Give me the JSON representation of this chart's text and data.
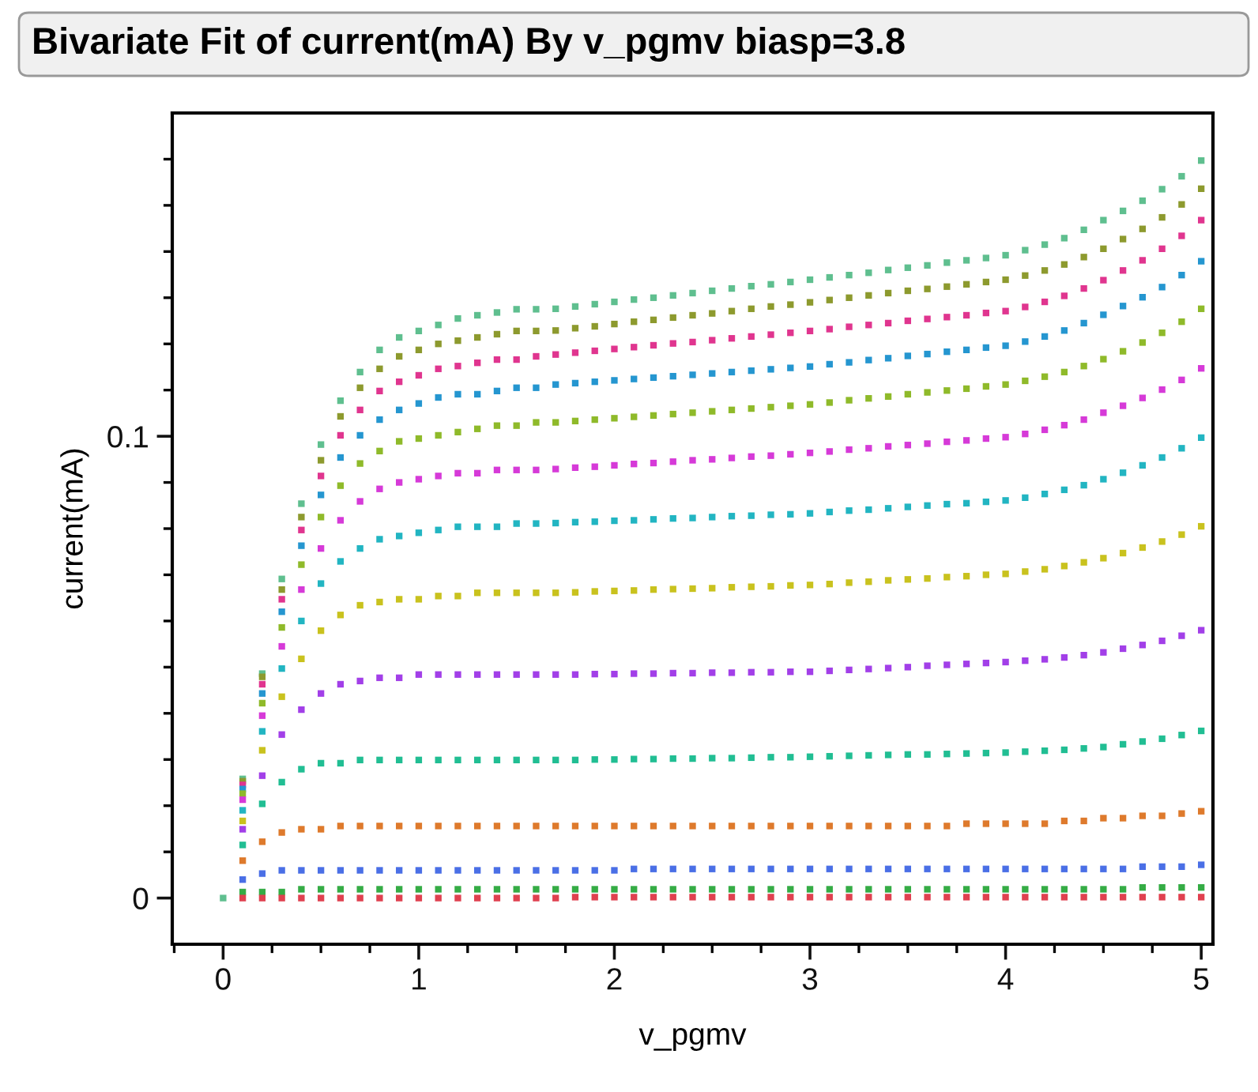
{
  "chart_data": {
    "type": "scatter",
    "title": "Bivariate Fit of current(mA) By v_pgmv biasp=3.8",
    "xlabel": "v_pgmv",
    "ylabel": "current(mA)",
    "x": [
      0,
      0.1,
      0.2,
      0.3,
      0.4,
      0.5,
      0.6,
      0.7,
      0.8,
      0.9,
      1.0,
      1.1,
      1.2,
      1.3,
      1.4,
      1.5,
      1.6,
      1.7,
      1.8,
      1.9,
      2.0,
      2.1,
      2.2,
      2.3,
      2.4,
      2.5,
      2.6,
      2.7,
      2.8,
      2.9,
      3.0,
      3.1,
      3.2,
      3.3,
      3.4,
      3.5,
      3.6,
      3.7,
      3.8,
      3.9,
      4.0,
      4.1,
      4.2,
      4.3,
      4.4,
      4.5,
      4.6,
      4.7,
      4.8,
      4.9,
      5.0
    ],
    "xlim": [
      -0.26,
      5.06
    ],
    "ylim": [
      -0.01,
      0.17
    ],
    "xticks": [
      0,
      1,
      2,
      3,
      4,
      5,
      {
        "value": -0.25,
        "label": null
      },
      {
        "value": 0.25,
        "label": null
      },
      {
        "value": 0.5,
        "label": null
      },
      {
        "value": 0.75,
        "label": null
      },
      {
        "value": 1.25,
        "label": null
      },
      {
        "value": 1.5,
        "label": null
      },
      {
        "value": 1.75,
        "label": null
      },
      {
        "value": 2.25,
        "label": null
      },
      {
        "value": 2.5,
        "label": null
      },
      {
        "value": 2.75,
        "label": null
      },
      {
        "value": 3.25,
        "label": null
      },
      {
        "value": 3.5,
        "label": null
      },
      {
        "value": 3.75,
        "label": null
      },
      {
        "value": 4.25,
        "label": null
      },
      {
        "value": 4.5,
        "label": null
      },
      {
        "value": 4.75,
        "label": null
      }
    ],
    "yticks": [
      0,
      0.1,
      {
        "value": 0.01,
        "label": null
      },
      {
        "value": 0.02,
        "label": null
      },
      {
        "value": 0.03,
        "label": null
      },
      {
        "value": 0.04,
        "label": null
      },
      {
        "value": 0.05,
        "label": null
      },
      {
        "value": 0.06,
        "label": null
      },
      {
        "value": 0.07,
        "label": null
      },
      {
        "value": 0.08,
        "label": null
      },
      {
        "value": 0.09,
        "label": null
      },
      {
        "value": 0.11,
        "label": null
      },
      {
        "value": 0.12,
        "label": null
      },
      {
        "value": 0.13,
        "label": null
      },
      {
        "value": 0.14,
        "label": null
      },
      {
        "value": 0.15,
        "label": null
      },
      {
        "value": 0.16,
        "label": null
      }
    ],
    "marker": "square",
    "grid": false,
    "legend": false,
    "series": [
      {
        "color": "#5fbf8f",
        "values": [
          0,
          0.0258,
          0.0486,
          0.0691,
          0.0854,
          0.0982,
          0.1077,
          0.1139,
          0.1187,
          0.1214,
          0.1228,
          0.1241,
          0.1255,
          0.1262,
          0.1268,
          0.1275,
          0.1275,
          0.1276,
          0.1281,
          0.1286,
          0.1291,
          0.1296,
          0.13,
          0.1305,
          0.131,
          0.1315,
          0.132,
          0.1325,
          0.1329,
          0.1334,
          0.1339,
          0.1344,
          0.1349,
          0.1354,
          0.136,
          0.1365,
          0.137,
          0.1376,
          0.1381,
          0.1386,
          0.1392,
          0.1403,
          0.1415,
          0.1429,
          0.1447,
          0.1468,
          0.1488,
          0.151,
          0.1535,
          0.1563,
          0.1597
        ]
      },
      {
        "color": "#8d9a2e",
        "values": [
          null,
          0.0253,
          0.0479,
          0.0668,
          0.0825,
          0.0948,
          0.1043,
          0.1105,
          0.1146,
          0.1173,
          0.1187,
          0.12,
          0.1207,
          0.1214,
          0.1221,
          0.1228,
          0.1228,
          0.1229,
          0.1234,
          0.1238,
          0.1243,
          0.1248,
          0.1252,
          0.1257,
          0.1262,
          0.1266,
          0.1271,
          0.1276,
          0.1281,
          0.1285,
          0.129,
          0.1295,
          0.13,
          0.1305,
          0.131,
          0.1315,
          0.1319,
          0.1324,
          0.1329,
          0.1334,
          0.1339,
          0.1348,
          0.1359,
          0.1372,
          0.1388,
          0.1406,
          0.1427,
          0.1449,
          0.1474,
          0.1502,
          0.1536
        ]
      },
      {
        "color": "#e0358f",
        "values": [
          null,
          0.0245,
          0.0463,
          0.0647,
          0.0797,
          0.0914,
          0.1002,
          0.1057,
          0.1098,
          0.1118,
          0.1132,
          0.1146,
          0.1152,
          0.1159,
          0.1166,
          0.1166,
          0.1173,
          0.1177,
          0.1181,
          0.1185,
          0.1189,
          0.1193,
          0.1197,
          0.1201,
          0.1204,
          0.1208,
          0.1212,
          0.1216,
          0.122,
          0.1224,
          0.1228,
          0.1232,
          0.1237,
          0.1241,
          0.1245,
          0.125,
          0.1254,
          0.1258,
          0.1262,
          0.1267,
          0.1271,
          0.128,
          0.1291,
          0.1304,
          0.132,
          0.1338,
          0.1359,
          0.1381,
          0.1406,
          0.1434,
          0.1468
        ]
      },
      {
        "color": "#2596d0",
        "values": [
          null,
          0.0236,
          0.0443,
          0.062,
          0.0763,
          0.0873,
          0.0954,
          0.1002,
          0.1036,
          0.1057,
          0.1071,
          0.1084,
          0.1091,
          0.1091,
          0.1098,
          0.1105,
          0.1105,
          0.1112,
          0.1115,
          0.1118,
          0.1121,
          0.1124,
          0.1127,
          0.113,
          0.1133,
          0.1136,
          0.1139,
          0.1142,
          0.1145,
          0.1148,
          0.1151,
          0.1156,
          0.116,
          0.1165,
          0.1169,
          0.1174,
          0.1178,
          0.1183,
          0.1187,
          0.1192,
          0.1196,
          0.1205,
          0.1216,
          0.1229,
          0.1245,
          0.1263,
          0.1282,
          0.1301,
          0.1323,
          0.1349,
          0.1379
        ]
      },
      {
        "color": "#8fba2a",
        "values": [
          null,
          0.0226,
          0.0422,
          0.0586,
          0.0722,
          0.0825,
          0.0893,
          0.0941,
          0.0968,
          0.0989,
          0.0995,
          0.1002,
          0.1009,
          0.1016,
          0.1023,
          0.1023,
          0.103,
          0.103,
          0.1033,
          0.1036,
          0.1039,
          0.1042,
          0.1045,
          0.1048,
          0.1051,
          0.1054,
          0.1057,
          0.106,
          0.1063,
          0.1066,
          0.1069,
          0.1073,
          0.1078,
          0.1082,
          0.1086,
          0.1091,
          0.1095,
          0.1099,
          0.1103,
          0.1108,
          0.1112,
          0.112,
          0.1129,
          0.1139,
          0.1152,
          0.1167,
          0.1184,
          0.1203,
          0.1224,
          0.1248,
          0.1276
        ]
      },
      {
        "color": "#d63ad8",
        "values": [
          null,
          0.0213,
          0.0395,
          0.0545,
          0.0668,
          0.0757,
          0.0818,
          0.0859,
          0.0886,
          0.09,
          0.0907,
          0.0914,
          0.092,
          0.092,
          0.0927,
          0.0927,
          0.0927,
          0.0929,
          0.0932,
          0.0934,
          0.0937,
          0.094,
          0.0942,
          0.0945,
          0.0948,
          0.095,
          0.0953,
          0.0956,
          0.0958,
          0.0961,
          0.0964,
          0.0967,
          0.0971,
          0.0974,
          0.0978,
          0.0981,
          0.0984,
          0.0988,
          0.0991,
          0.0995,
          0.0998,
          0.1005,
          0.1014,
          0.1024,
          0.1036,
          0.1051,
          0.1066,
          0.1083,
          0.1101,
          0.1122,
          0.1147
        ]
      },
      {
        "color": "#22b5c2",
        "values": [
          null,
          0.019,
          0.0361,
          0.0497,
          0.06,
          0.0681,
          0.0729,
          0.0757,
          0.0777,
          0.0784,
          0.0791,
          0.0797,
          0.0804,
          0.0804,
          0.0804,
          0.0811,
          0.0811,
          0.0812,
          0.0814,
          0.0815,
          0.0817,
          0.0818,
          0.082,
          0.0822,
          0.0823,
          0.0825,
          0.0827,
          0.0828,
          0.083,
          0.0831,
          0.0833,
          0.0836,
          0.0839,
          0.0841,
          0.0844,
          0.0847,
          0.085,
          0.0853,
          0.0855,
          0.0858,
          0.0861,
          0.0867,
          0.0875,
          0.0884,
          0.0894,
          0.0907,
          0.0921,
          0.0937,
          0.0954,
          0.0974,
          0.0997
        ]
      },
      {
        "color": "#c9c21e",
        "values": [
          null,
          0.0167,
          0.032,
          0.0436,
          0.0518,
          0.0579,
          0.0613,
          0.0634,
          0.0641,
          0.0647,
          0.0647,
          0.0654,
          0.0654,
          0.0661,
          0.0661,
          0.0661,
          0.0661,
          0.0661,
          0.0662,
          0.0664,
          0.0665,
          0.0666,
          0.0668,
          0.0669,
          0.067,
          0.0671,
          0.0673,
          0.0674,
          0.0675,
          0.0677,
          0.0678,
          0.068,
          0.0683,
          0.0685,
          0.0688,
          0.069,
          0.0692,
          0.0695,
          0.0697,
          0.07,
          0.0702,
          0.0707,
          0.0712,
          0.0719,
          0.0727,
          0.0736,
          0.0747,
          0.0759,
          0.0772,
          0.0787,
          0.0805
        ]
      },
      {
        "color": "#a23fe8",
        "values": [
          null,
          0.0149,
          0.0265,
          0.0354,
          0.0408,
          0.0443,
          0.0463,
          0.047,
          0.0477,
          0.0477,
          0.0484,
          0.0484,
          0.0484,
          0.0484,
          0.0484,
          0.0484,
          0.0484,
          0.0484,
          0.0484,
          0.0485,
          0.0485,
          0.0486,
          0.0486,
          0.0487,
          0.0487,
          0.0488,
          0.0488,
          0.0489,
          0.0489,
          0.049,
          0.049,
          0.0492,
          0.0494,
          0.0496,
          0.0498,
          0.05,
          0.0503,
          0.0505,
          0.0507,
          0.0509,
          0.0511,
          0.0514,
          0.0517,
          0.0521,
          0.0526,
          0.0532,
          0.054,
          0.0548,
          0.0557,
          0.0568,
          0.058
        ]
      },
      {
        "color": "#21be93",
        "values": [
          null,
          0.0115,
          0.0204,
          0.0251,
          0.0279,
          0.0292,
          0.0292,
          0.0299,
          0.0299,
          0.0299,
          0.0299,
          0.0299,
          0.0299,
          0.0299,
          0.0299,
          0.0299,
          0.0299,
          0.0299,
          0.0299,
          0.03,
          0.03,
          0.0301,
          0.0301,
          0.0302,
          0.0302,
          0.0303,
          0.0303,
          0.0304,
          0.0305,
          0.0305,
          0.0306,
          0.0307,
          0.0308,
          0.0309,
          0.031,
          0.0311,
          0.0311,
          0.0312,
          0.0313,
          0.0314,
          0.0315,
          0.0317,
          0.0319,
          0.0321,
          0.0324,
          0.0327,
          0.0333,
          0.0339,
          0.0345,
          0.0353,
          0.0362
        ]
      },
      {
        "color": "#de7a2c",
        "values": [
          null,
          0.0081,
          0.0122,
          0.0142,
          0.0149,
          0.0149,
          0.0156,
          0.0156,
          0.0156,
          0.0156,
          0.0156,
          0.0156,
          0.0156,
          0.0156,
          0.0156,
          0.0156,
          0.0156,
          0.0156,
          0.0156,
          0.0156,
          0.0156,
          0.0156,
          0.0156,
          0.0156,
          0.0156,
          0.0156,
          0.0156,
          0.0156,
          0.0156,
          0.0156,
          0.0156,
          0.0156,
          0.0156,
          0.0156,
          0.0156,
          0.0156,
          0.0156,
          0.0156,
          0.0161,
          0.0161,
          0.0161,
          0.0161,
          0.0161,
          0.0167,
          0.0167,
          0.0173,
          0.0173,
          0.0178,
          0.0178,
          0.0183,
          0.0188
        ]
      },
      {
        "color": "#4a6fe6",
        "values": [
          null,
          0.004,
          0.0053,
          0.006,
          0.006,
          0.006,
          0.006,
          0.006,
          0.006,
          0.006,
          0.006,
          0.006,
          0.006,
          0.006,
          0.006,
          0.006,
          0.006,
          0.006,
          0.006,
          0.006,
          0.006,
          0.0063,
          0.0063,
          0.0063,
          0.0063,
          0.0063,
          0.0063,
          0.0063,
          0.0063,
          0.0063,
          0.0063,
          0.0063,
          0.0063,
          0.0063,
          0.0063,
          0.0063,
          0.0063,
          0.0063,
          0.0063,
          0.0063,
          0.0063,
          0.0063,
          0.0063,
          0.0063,
          0.0063,
          0.0063,
          0.0063,
          0.0068,
          0.0068,
          0.0068,
          0.0072
        ]
      },
      {
        "color": "#35ac45",
        "values": [
          null,
          0.0013,
          0.0013,
          0.0013,
          0.0019,
          0.0019,
          0.0019,
          0.0019,
          0.0019,
          0.0019,
          0.0019,
          0.0019,
          0.0019,
          0.0019,
          0.0019,
          0.0019,
          0.0019,
          0.0019,
          0.0019,
          0.0019,
          0.0019,
          0.0019,
          0.0019,
          0.0019,
          0.0019,
          0.0019,
          0.0019,
          0.0019,
          0.0019,
          0.0019,
          0.0019,
          0.0019,
          0.0019,
          0.0019,
          0.0019,
          0.0019,
          0.0019,
          0.0019,
          0.0019,
          0.0019,
          0.0019,
          0.0019,
          0.0019,
          0.0019,
          0.0019,
          0.0019,
          0.0019,
          0.0023,
          0.0023,
          0.0023,
          0.0023
        ]
      },
      {
        "color": "#e0404f",
        "values": [
          null,
          0,
          0,
          0,
          0,
          0,
          0,
          0,
          0,
          0,
          0,
          0,
          0,
          0,
          0,
          0,
          0,
          0,
          0.0002,
          0.0002,
          0.0002,
          0.0002,
          0.0002,
          0.0002,
          0.0002,
          0.0002,
          0.0002,
          0.0002,
          0.0002,
          0.0002,
          0.0002,
          0.0002,
          0.0002,
          0.0002,
          0.0002,
          0.0002,
          0.0002,
          0.0002,
          0.0002,
          0.0002,
          0.0002,
          0.0002,
          0.0002,
          0.0002,
          0.0002,
          0.0002,
          0.0002,
          0.0002,
          0.0002,
          0.0002,
          0.0002
        ]
      }
    ]
  }
}
